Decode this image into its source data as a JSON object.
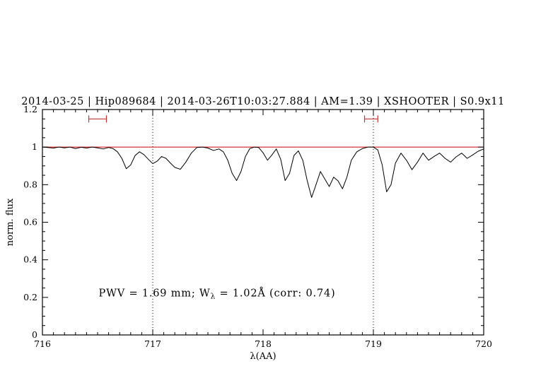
{
  "header": {
    "title": "2014-03-25 | Hip089684 | 2014-03-26T10:03:27.884 | AM=1.39 | XSHOOTER | S0.9x11",
    "color": "#0000cc"
  },
  "chart_data": {
    "type": "line",
    "title": "2014-03-25 | Hip089684 | 2014-03-26T10:03:27.884 | AM=1.39 | XSHOOTER | S0.9x11",
    "xlabel": "λ(AA)",
    "ylabel": "norm. flux",
    "xlim": [
      716,
      720
    ],
    "ylim": [
      0,
      1.2
    ],
    "x_major_ticks": [
      716,
      717,
      718,
      719,
      720
    ],
    "x_tick_labels": [
      "716",
      "717",
      "718",
      "719",
      "720"
    ],
    "x_minor_step": 0.1,
    "y_major_ticks": [
      0,
      0.2,
      0.4,
      0.6,
      0.8,
      1,
      1.2
    ],
    "y_tick_labels": [
      "0",
      "0.2",
      "0.4",
      "0.6",
      "0.8",
      "1",
      "1.2"
    ],
    "y_minor_step": 0.05,
    "grid": false,
    "legend": "none",
    "dotted_vlines": [
      717,
      719
    ],
    "continuum": {
      "y": 1.0,
      "color": "#cc0000"
    },
    "range_markers": {
      "color": "#cc3333",
      "y": 1.15,
      "intervals": [
        [
          716.42,
          716.58
        ],
        [
          718.92,
          719.04
        ]
      ]
    },
    "annotation": {
      "prefix": "PWV = 1.69 mm; W",
      "sub": "λ",
      "suffix": " = 1.02Å (corr: 0.74)",
      "x": 716.51,
      "y": 0.205,
      "color": "#0000cc"
    },
    "series": [
      {
        "name": "spectrum",
        "color": "#000000",
        "x": [
          716.0,
          716.05,
          716.1,
          716.15,
          716.2,
          716.25,
          716.3,
          716.35,
          716.4,
          716.45,
          716.5,
          716.55,
          716.6,
          716.64,
          716.68,
          716.72,
          716.76,
          716.8,
          716.84,
          716.88,
          716.92,
          716.96,
          717.0,
          717.04,
          717.08,
          717.12,
          717.16,
          717.2,
          717.25,
          717.3,
          717.35,
          717.4,
          717.45,
          717.5,
          717.55,
          717.6,
          717.64,
          717.68,
          717.72,
          717.76,
          717.8,
          717.84,
          717.88,
          717.92,
          717.96,
          718.0,
          718.04,
          718.08,
          718.12,
          718.16,
          718.2,
          718.24,
          718.28,
          718.32,
          718.36,
          718.4,
          718.44,
          718.48,
          718.52,
          718.56,
          718.6,
          718.64,
          718.68,
          718.72,
          718.76,
          718.8,
          718.85,
          718.9,
          718.95,
          719.0,
          719.04,
          719.08,
          719.12,
          719.16,
          719.2,
          719.25,
          719.3,
          719.35,
          719.4,
          719.45,
          719.5,
          719.55,
          719.6,
          719.65,
          719.7,
          719.75,
          719.8,
          719.85,
          719.9,
          719.95,
          720.0
        ],
        "y": [
          1.0,
          0.998,
          0.995,
          1.0,
          0.996,
          1.0,
          0.992,
          0.999,
          0.995,
          1.0,
          0.996,
          0.99,
          0.998,
          0.992,
          0.975,
          0.94,
          0.885,
          0.905,
          0.955,
          0.975,
          0.96,
          0.935,
          0.912,
          0.925,
          0.95,
          0.94,
          0.915,
          0.892,
          0.882,
          0.92,
          0.968,
          0.998,
          1.0,
          0.995,
          0.982,
          0.99,
          0.975,
          0.93,
          0.86,
          0.822,
          0.87,
          0.95,
          0.992,
          1.0,
          0.998,
          0.97,
          0.93,
          0.958,
          0.99,
          0.935,
          0.822,
          0.86,
          0.955,
          0.98,
          0.93,
          0.822,
          0.732,
          0.8,
          0.87,
          0.83,
          0.79,
          0.84,
          0.82,
          0.778,
          0.84,
          0.93,
          0.975,
          0.992,
          1.0,
          1.0,
          0.985,
          0.905,
          0.762,
          0.8,
          0.915,
          0.968,
          0.93,
          0.88,
          0.92,
          0.968,
          0.93,
          0.95,
          0.968,
          0.94,
          0.92,
          0.948,
          0.968,
          0.94,
          0.958,
          0.978,
          0.99
        ]
      }
    ]
  }
}
